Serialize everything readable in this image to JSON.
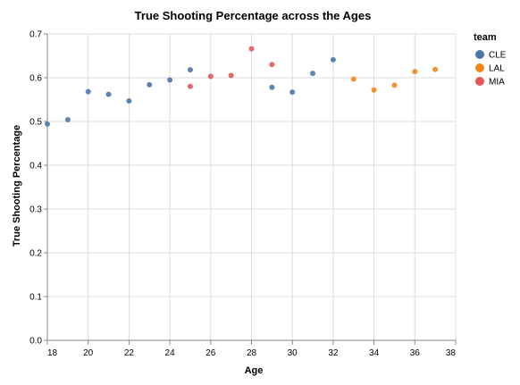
{
  "chart_data": {
    "type": "scatter",
    "title": "True Shooting Percentage across the Ages",
    "xlabel": "Age",
    "ylabel": "True Shooting Percentage",
    "xlim": [
      18,
      38
    ],
    "ylim": [
      0,
      0.7
    ],
    "xticks": [
      "18",
      "20",
      "22",
      "24",
      "26",
      "28",
      "30",
      "32",
      "34",
      "36",
      "38"
    ],
    "yticks": [
      "0.0",
      "0.1",
      "0.2",
      "0.3",
      "0.4",
      "0.5",
      "0.6",
      "0.7"
    ],
    "grid": true,
    "legend": {
      "title": "team",
      "placement": "right"
    },
    "series": [
      {
        "name": "CLE",
        "color": "#4c78a8",
        "points": [
          {
            "x": 18,
            "y": 0.494
          },
          {
            "x": 19,
            "y": 0.504
          },
          {
            "x": 20,
            "y": 0.568
          },
          {
            "x": 21,
            "y": 0.562
          },
          {
            "x": 22,
            "y": 0.547
          },
          {
            "x": 23,
            "y": 0.584
          },
          {
            "x": 24,
            "y": 0.595
          },
          {
            "x": 25,
            "y": 0.618
          },
          {
            "x": 29,
            "y": 0.578
          },
          {
            "x": 30,
            "y": 0.567
          },
          {
            "x": 31,
            "y": 0.61
          },
          {
            "x": 32,
            "y": 0.641
          }
        ]
      },
      {
        "name": "LAL",
        "color": "#f58518",
        "points": [
          {
            "x": 33,
            "y": 0.597
          },
          {
            "x": 34,
            "y": 0.572
          },
          {
            "x": 35,
            "y": 0.583
          },
          {
            "x": 36,
            "y": 0.614
          },
          {
            "x": 37,
            "y": 0.619
          }
        ]
      },
      {
        "name": "MIA",
        "color": "#e45756",
        "points": [
          {
            "x": 25,
            "y": 0.58
          },
          {
            "x": 26,
            "y": 0.603
          },
          {
            "x": 27,
            "y": 0.605
          },
          {
            "x": 28,
            "y": 0.666
          },
          {
            "x": 29,
            "y": 0.63
          }
        ]
      }
    ]
  }
}
